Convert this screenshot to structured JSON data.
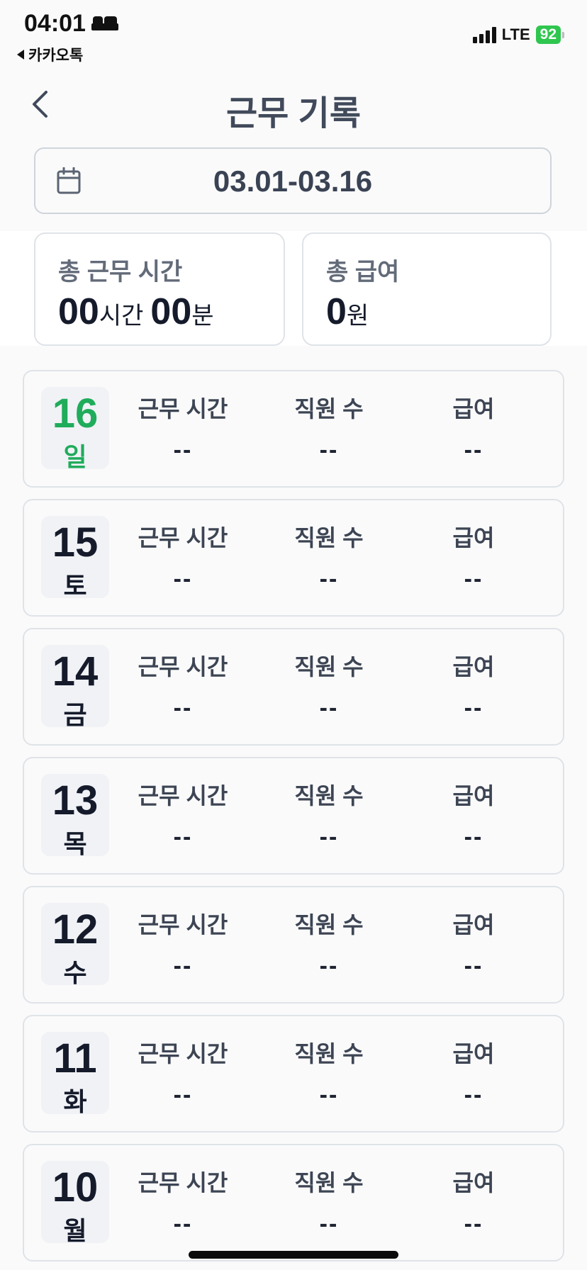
{
  "status_bar": {
    "time": "04:01",
    "back_app": "카카오톡",
    "network": "LTE",
    "battery": "92"
  },
  "header": {
    "title": "근무 기록"
  },
  "date_range": {
    "label": "03.01-03.16"
  },
  "summary": {
    "total_hours": {
      "label": "총 근무 시간",
      "hours": "00",
      "hours_unit": "시간",
      "minutes": "00",
      "minutes_unit": "분"
    },
    "total_pay": {
      "label": "총 급여",
      "amount": "0",
      "unit": "원"
    }
  },
  "columns": {
    "hours": "근무 시간",
    "staff": "직원 수",
    "pay": "급여"
  },
  "days": [
    {
      "day": "16",
      "weekday": "일",
      "hours": "--",
      "staff": "--",
      "pay": "--"
    },
    {
      "day": "15",
      "weekday": "토",
      "hours": "--",
      "staff": "--",
      "pay": "--"
    },
    {
      "day": "14",
      "weekday": "금",
      "hours": "--",
      "staff": "--",
      "pay": "--"
    },
    {
      "day": "13",
      "weekday": "목",
      "hours": "--",
      "staff": "--",
      "pay": "--"
    },
    {
      "day": "12",
      "weekday": "수",
      "hours": "--",
      "staff": "--",
      "pay": "--"
    },
    {
      "day": "11",
      "weekday": "화",
      "hours": "--",
      "staff": "--",
      "pay": "--"
    },
    {
      "day": "10",
      "weekday": "월",
      "hours": "--",
      "staff": "--",
      "pay": "--"
    }
  ],
  "colors": {
    "accent_today": "#1fac5b",
    "battery": "#2fc64f"
  }
}
